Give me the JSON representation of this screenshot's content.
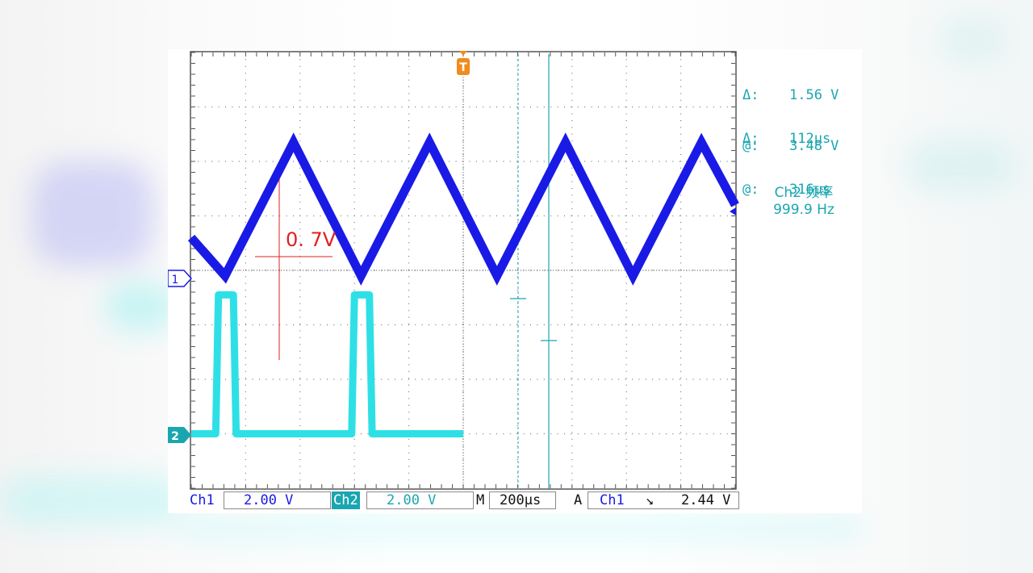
{
  "scope": {
    "cursor_voltage": {
      "delta_label": "Δ:",
      "delta_value": "1.56 V",
      "at_label": "@:",
      "at_value": "3.48 V"
    },
    "cursor_time": {
      "delta_label": "Δ:",
      "delta_value": "112µs",
      "at_label": "@:",
      "at_value": "316µs"
    },
    "measurement": {
      "name": "Ch2 频率",
      "value": "999.9 Hz"
    },
    "annotation": "0. 7V",
    "trigger_marker": "T",
    "ch1_marker": "1",
    "ch2_marker": "2",
    "status_bar": {
      "ch1_label": "Ch1",
      "ch1_scale": "2.00 V",
      "ch2_label": "Ch2",
      "ch2_scale": "2.00 V",
      "m_label": "M",
      "timebase": "200µs",
      "a_label": "A",
      "trig_source": "Ch1",
      "trig_slope": "↘",
      "trig_level": "2.44 V"
    }
  },
  "colors": {
    "ch1": "#1a1ae6",
    "ch2": "#2ee0e6",
    "readout": "#1aa6b0",
    "annotation": "#e02020",
    "trigger": "#f08c1e"
  },
  "chart_data": {
    "type": "line",
    "xlabel": "",
    "ylabel": "",
    "xlim_us": [
      0,
      2000
    ],
    "ylim_div": [
      -4,
      4
    ],
    "grid": true,
    "series": [
      {
        "name": "",
        "x_us": [
          0,
          124,
          376,
          624,
          876,
          1124,
          1376,
          1624,
          1876,
          2000
        ],
        "y_div": [
          0.6,
          -0.1,
          2.35,
          -0.1,
          2.35,
          -0.1,
          2.35,
          -0.1,
          2.35,
          1.2
        ]
      },
      {
        "name": "",
        "x_us": [
          0,
          90,
          100,
          155,
          165,
          590,
          600,
          655,
          665,
          1000
        ],
        "y_div": [
          -3.0,
          -3.0,
          -0.45,
          -0.45,
          -3.0,
          -3.0,
          -0.45,
          -0.45,
          -3.0,
          -3.0
        ]
      }
    ]
  }
}
